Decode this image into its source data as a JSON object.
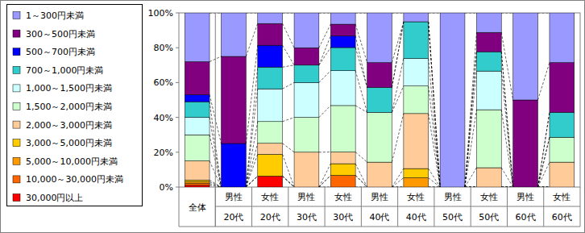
{
  "chart_data": {
    "type": "bar",
    "stacked": true,
    "legend": "left",
    "categories": [
      "全体",
      "男性\n20代",
      "女性\n20代",
      "男性\n30代",
      "女性\n30代",
      "男性\n40代",
      "女性\n40代",
      "男性\n50代",
      "女性\n50代",
      "男性\n60代",
      "女性\n60代"
    ],
    "ylim": [
      0,
      100
    ],
    "yticks": [
      {
        "value": 0,
        "label": "0%"
      },
      {
        "value": 20,
        "label": "20%"
      },
      {
        "value": 40,
        "label": "40%"
      },
      {
        "value": 60,
        "label": "60%"
      },
      {
        "value": 80,
        "label": "80%"
      },
      {
        "value": 100,
        "label": "100%"
      }
    ],
    "series": [
      {
        "name": "1～300円未満",
        "color": "#9999ff",
        "values": [
          28,
          25,
          6.1,
          20,
          6.5,
          28.5,
          5.1,
          100,
          11.2,
          50,
          28.5
        ]
      },
      {
        "name": "300～500円未満",
        "color": "#800080",
        "values": [
          19,
          50,
          12.5,
          10,
          6.7,
          14.3,
          0,
          0,
          11.1,
          50,
          28.6
        ]
      },
      {
        "name": "500～700円未満",
        "color": "#0000ff",
        "values": [
          4,
          25,
          12.5,
          0,
          6.7,
          0,
          0,
          0,
          0,
          0,
          0
        ]
      },
      {
        "name": "700～1,000円未満",
        "color": "#33cccc",
        "values": [
          9,
          0,
          12.5,
          10,
          13.3,
          14.3,
          21.1,
          0,
          11.1,
          0,
          14.3
        ]
      },
      {
        "name": "1,000～1,500円未満",
        "color": "#ccffff",
        "values": [
          10,
          0,
          18.8,
          20,
          20,
          0,
          15.8,
          0,
          22.2,
          0,
          0
        ]
      },
      {
        "name": "1,500～2,000円未満",
        "color": "#ccffcc",
        "values": [
          15,
          0,
          12.5,
          20,
          26.7,
          28.6,
          15.8,
          0,
          33.3,
          0,
          14.3
        ]
      },
      {
        "name": "2,000～3,000円未満",
        "color": "#ffcc99",
        "values": [
          11,
          0,
          6.3,
          20,
          6.7,
          14.3,
          31.6,
          0,
          11.1,
          0,
          14.3
        ]
      },
      {
        "name": "3,000～5,000円未満",
        "color": "#ffcc00",
        "values": [
          1,
          0,
          12.5,
          0,
          6.7,
          0,
          5.3,
          0,
          0,
          0,
          0
        ]
      },
      {
        "name": "5,000～10,000円未満",
        "color": "#ff9900",
        "values": [
          1,
          0,
          0,
          0,
          0,
          0,
          5.3,
          0,
          0,
          0,
          0
        ]
      },
      {
        "name": "10,000～30,000円未満",
        "color": "#ff6600",
        "values": [
          1,
          0,
          0,
          0,
          6.7,
          0,
          0,
          0,
          0,
          0,
          0
        ]
      },
      {
        "name": "30,000円以上",
        "color": "#ff0000",
        "values": [
          1,
          0,
          6.3,
          0,
          0,
          0,
          0,
          0,
          0,
          0,
          0
        ]
      }
    ]
  }
}
